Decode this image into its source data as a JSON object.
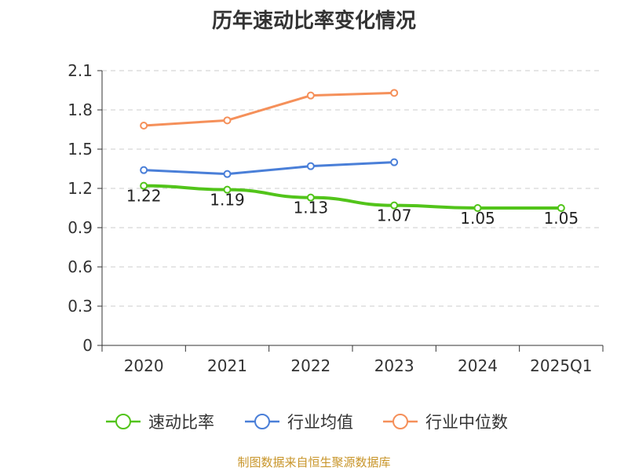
{
  "colors": {
    "speed_ratio": "#52c41a",
    "industry_mean": "#4a7fd8",
    "industry_median": "#f5905a",
    "source": "#c8952a"
  },
  "chart_data": {
    "type": "line",
    "title": "历年速动比率变化情况",
    "categories": [
      "2020",
      "2021",
      "2022",
      "2023",
      "2024",
      "2025Q1"
    ],
    "ylim": [
      0,
      2.1
    ],
    "yticks": [
      "0",
      "0.3",
      "0.6",
      "0.9",
      "1.2",
      "1.5",
      "1.8",
      "2.1"
    ],
    "grid": true,
    "legend_position": "bottom",
    "series": [
      {
        "name": "速动比率",
        "values": [
          1.22,
          1.19,
          1.13,
          1.07,
          1.05,
          1.05
        ],
        "labels": [
          "1.22",
          "1.19",
          "1.13",
          "1.07",
          "1.05",
          "1.05"
        ]
      },
      {
        "name": "行业均值",
        "values": [
          1.34,
          1.31,
          1.37,
          1.4,
          null,
          null
        ]
      },
      {
        "name": "行业中位数",
        "values": [
          1.68,
          1.72,
          1.91,
          1.93,
          null,
          null
        ]
      }
    ],
    "source": "制图数据来自恒生聚源数据库"
  }
}
